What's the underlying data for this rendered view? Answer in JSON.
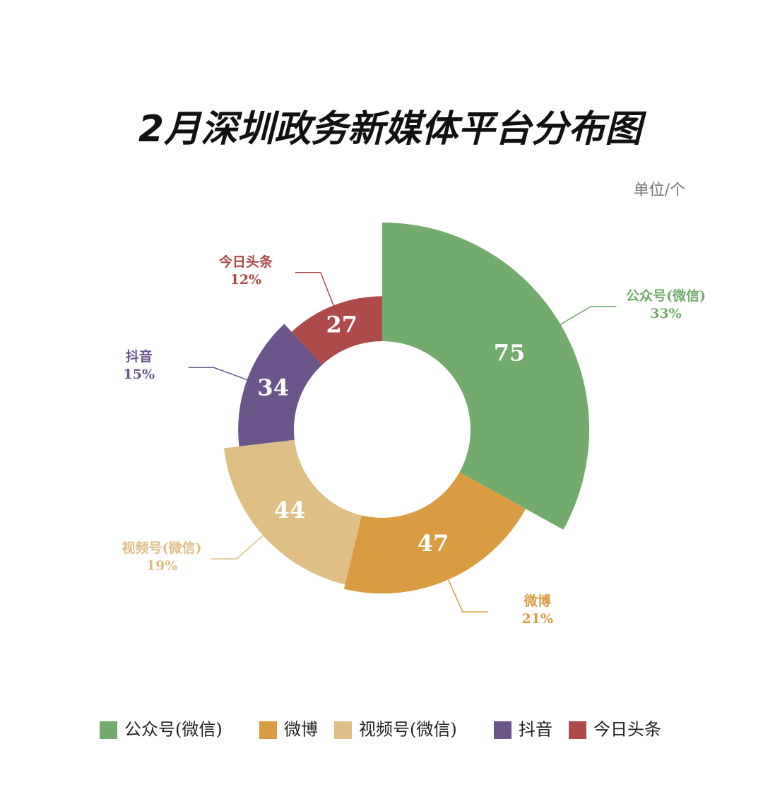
{
  "chart_data": {
    "type": "rose-donut",
    "title": "2月深圳政务新媒体平台分布图",
    "unit_label": "单位/个",
    "categories": [
      "公众号(微信)",
      "微博",
      "视频号(微信)",
      "抖音",
      "今日头条"
    ],
    "values": [
      75,
      47,
      44,
      34,
      27
    ],
    "percent_labels": [
      "33%",
      "21%",
      "19%",
      "15%",
      "12%"
    ],
    "colors": [
      "#72ab6b",
      "#d99c42",
      "#dfbf85",
      "#6b568b",
      "#ad4a4a"
    ],
    "legend": "bottom"
  }
}
